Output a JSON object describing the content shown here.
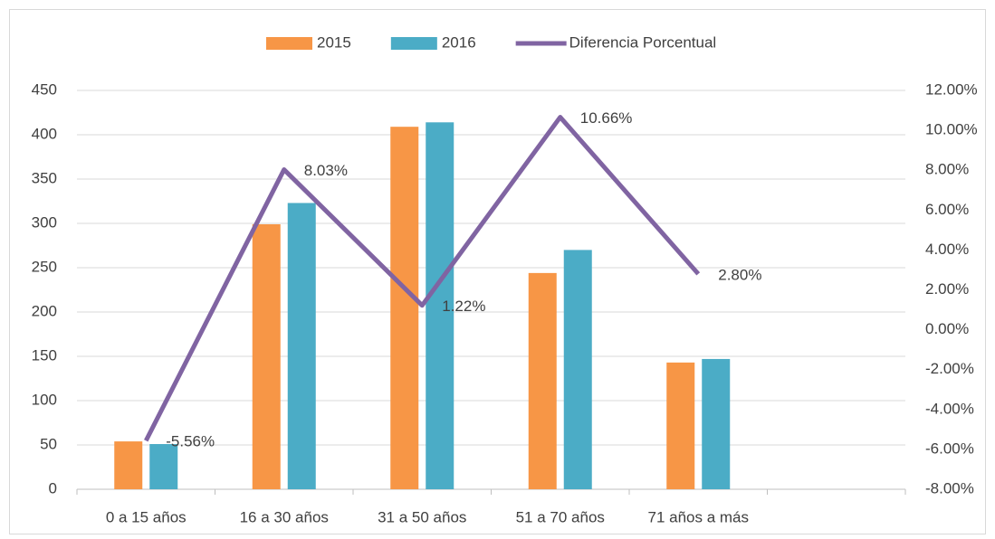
{
  "chart_data": {
    "type": "bar_line",
    "categories": [
      "0 a 15 años",
      "16 a 30 años",
      "31 a 50 años",
      "51 a 70 años",
      "71 años a más",
      null
    ],
    "series": [
      {
        "name": "2015",
        "color": "#f79646",
        "type": "bar",
        "values": [
          54,
          299,
          409,
          244,
          143,
          null
        ]
      },
      {
        "name": "2016",
        "color": "#4bacc6",
        "type": "bar",
        "values": [
          51,
          323,
          414,
          270,
          147,
          null
        ]
      },
      {
        "name": "Diferencia Porcentual",
        "color": "#8064a2",
        "type": "line",
        "axis": "y2",
        "values": [
          -5.56,
          8.03,
          1.22,
          10.66,
          2.8,
          null
        ],
        "value_labels": [
          "-5.56%",
          "8.03%",
          "1.22%",
          "10.66%",
          "2.80%",
          null
        ]
      }
    ],
    "ylim": [
      0,
      450
    ],
    "yticks": [
      0,
      50,
      100,
      150,
      200,
      250,
      300,
      350,
      400,
      450
    ],
    "y2lim": [
      -8,
      12
    ],
    "y2ticks": [
      {
        "value": -8,
        "label": "-8.00%"
      },
      {
        "value": -6,
        "label": "-6.00%"
      },
      {
        "value": -4,
        "label": "-4.00%"
      },
      {
        "value": -2,
        "label": "-2.00%"
      },
      {
        "value": 0,
        "label": "0.00%"
      },
      {
        "value": 2,
        "label": "2.00%"
      },
      {
        "value": 4,
        "label": "4.00%"
      },
      {
        "value": 6,
        "label": "6.00%"
      },
      {
        "value": 8,
        "label": "8.00%"
      },
      {
        "value": 10,
        "label": "10.00%"
      },
      {
        "value": 12,
        "label": "12.00%"
      }
    ],
    "grid": true,
    "legend": "top"
  }
}
